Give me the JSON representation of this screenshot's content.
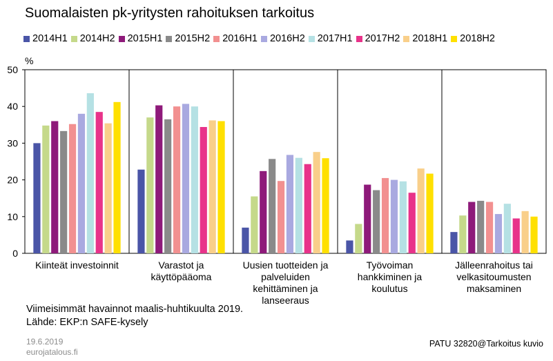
{
  "title": "Suomalaisten pk-yritysten rahoituksen tarkoitus",
  "footer": {
    "note1": "Viimeisimmät havainnot maalis-huhtikuulta 2019.",
    "note2": "Lähde: EKP:n SAFE-kysely",
    "date": "19.6.2019",
    "site": "eurojatalous.fi",
    "code": "PATU 32820@Tarkoitus kuvio"
  },
  "chart_data": {
    "type": "bar",
    "ylabel": "%",
    "ylim": [
      0,
      50
    ],
    "yticks": [
      0,
      10,
      20,
      30,
      40,
      50
    ],
    "legend_position": "top",
    "categories": [
      [
        "Kiinteät investoinnit"
      ],
      [
        "Varastot ja",
        "käyttöpääoma"
      ],
      [
        "Uusien tuotteiden ja",
        "palveluiden",
        "kehittäminen ja",
        "lanseeraus"
      ],
      [
        "Työvoiman",
        "hankkiminen ja",
        "koulutus"
      ],
      [
        "Jälleenrahoitus tai",
        "velkasitoumusten",
        "maksaminen"
      ]
    ],
    "series": [
      {
        "name": "2014H1",
        "color": "#4a55a7",
        "values": [
          30.0,
          22.8,
          7.0,
          3.5,
          5.8
        ]
      },
      {
        "name": "2014H2",
        "color": "#c5d98a",
        "values": [
          34.8,
          37.0,
          15.5,
          8.0,
          10.3
        ]
      },
      {
        "name": "2015H1",
        "color": "#8e1a7a",
        "values": [
          36.0,
          40.3,
          22.4,
          18.7,
          14.0
        ]
      },
      {
        "name": "2015H2",
        "color": "#8a8a8a",
        "values": [
          33.3,
          36.5,
          25.7,
          17.2,
          14.3
        ]
      },
      {
        "name": "2016H1",
        "color": "#f29090",
        "values": [
          35.2,
          40.0,
          19.7,
          20.5,
          14.0
        ]
      },
      {
        "name": "2016H2",
        "color": "#a9a9e0",
        "values": [
          38.0,
          40.7,
          26.8,
          20.0,
          10.7
        ]
      },
      {
        "name": "2017H1",
        "color": "#b5e1e4",
        "values": [
          43.6,
          40.0,
          26.0,
          19.6,
          13.5
        ]
      },
      {
        "name": "2017H2",
        "color": "#e8338a",
        "values": [
          38.5,
          34.4,
          24.3,
          16.5,
          9.5
        ]
      },
      {
        "name": "2018H1",
        "color": "#f9cf8a",
        "values": [
          35.4,
          36.2,
          27.6,
          23.1,
          11.5
        ]
      },
      {
        "name": "2018H2",
        "color": "#ffe000",
        "values": [
          41.2,
          36.0,
          25.9,
          21.7,
          10.0
        ]
      }
    ]
  }
}
